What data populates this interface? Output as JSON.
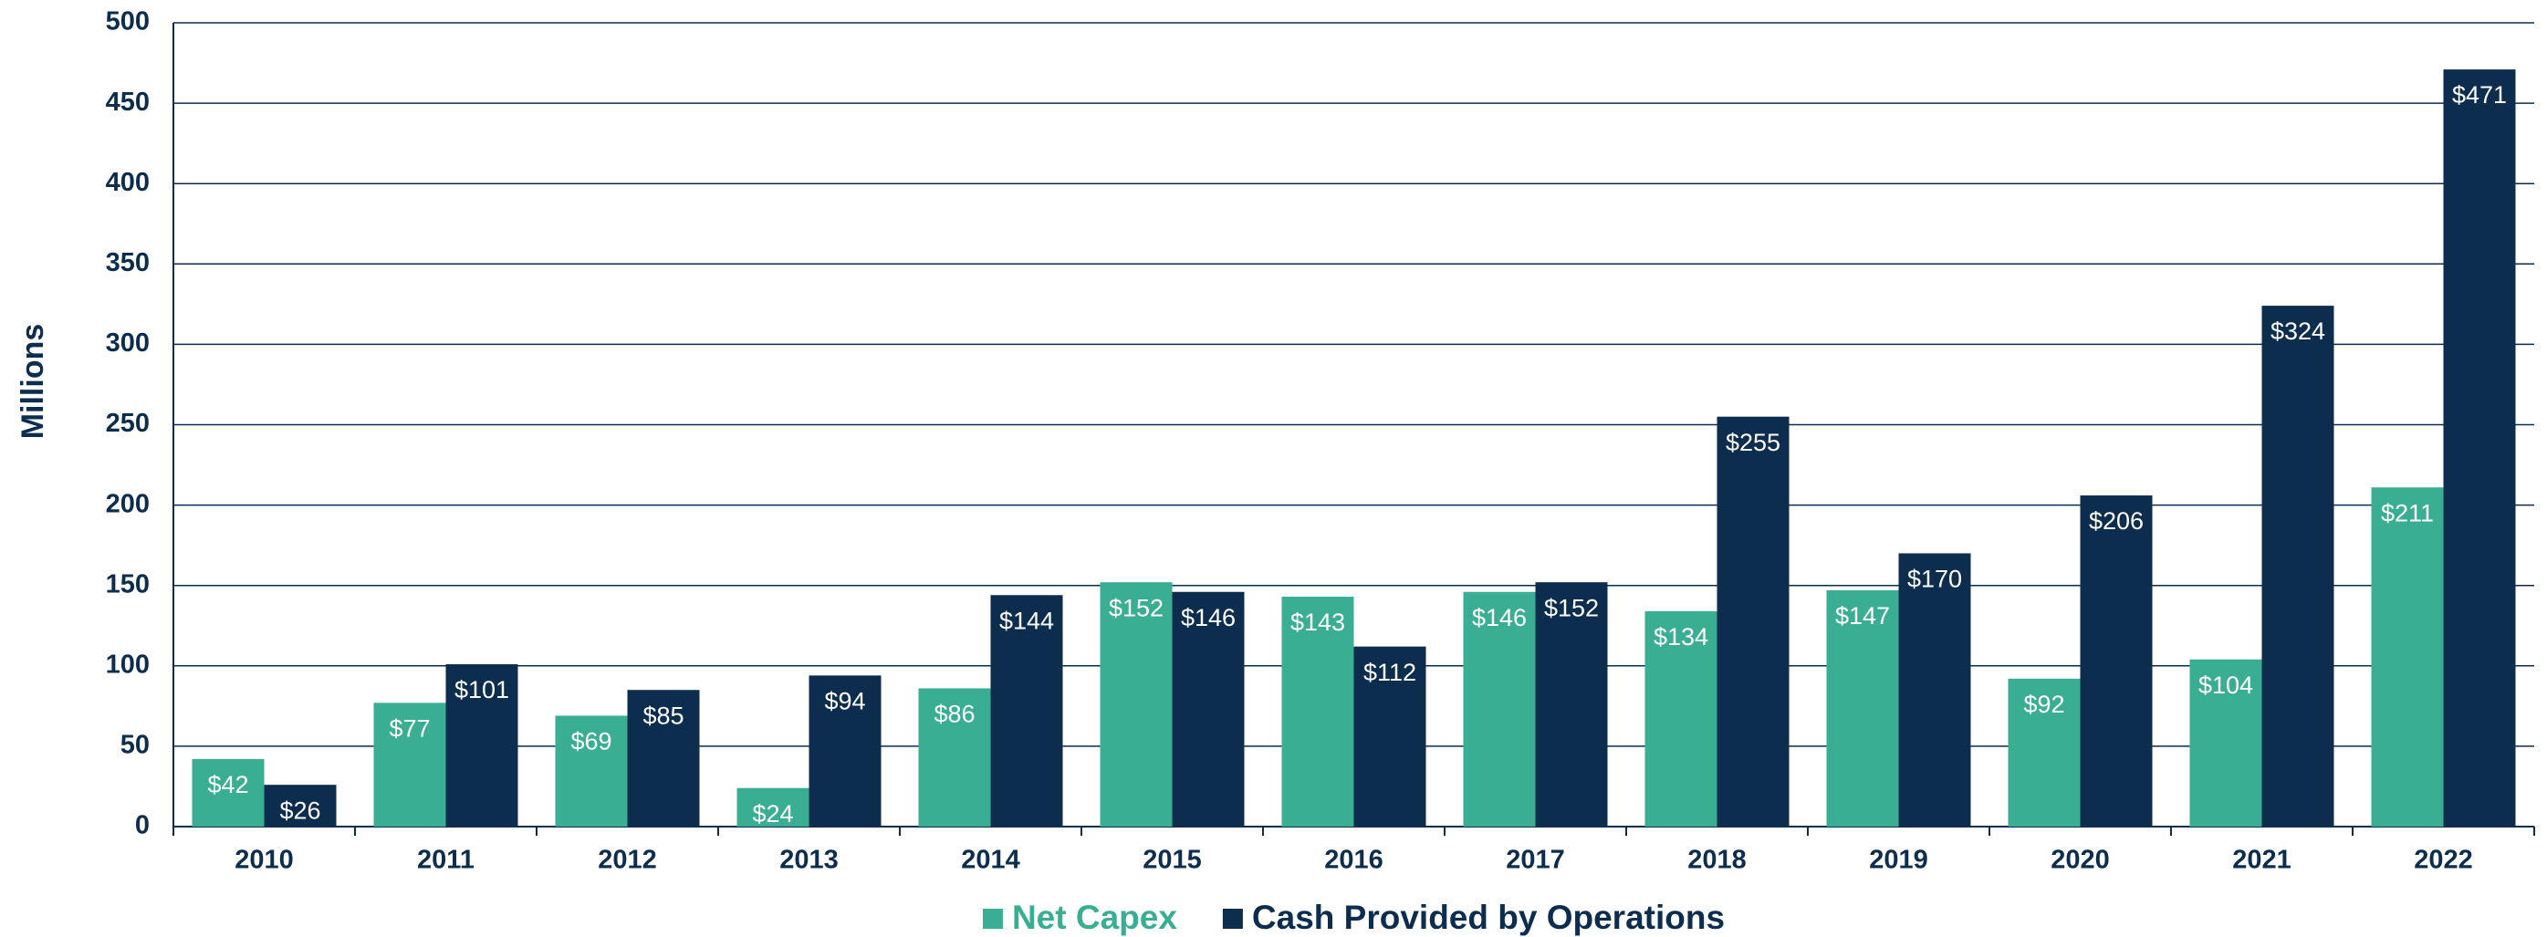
{
  "chart_data": {
    "type": "bar",
    "y_axis_label": "Millions",
    "categories": [
      "2010",
      "2011",
      "2012",
      "2013",
      "2014",
      "2015",
      "2016",
      "2017",
      "2018",
      "2019",
      "2020",
      "2021",
      "2022"
    ],
    "series": [
      {
        "name": "Net Capex",
        "color": "#3aae93",
        "values": [
          42,
          77,
          69,
          24,
          86,
          152,
          143,
          146,
          134,
          147,
          92,
          104,
          211
        ],
        "value_labels": [
          "$42",
          "$77",
          "$69",
          "$24",
          "$86",
          "$152",
          "$143",
          "$146",
          "$134",
          "$147",
          "$92",
          "$104",
          "$211"
        ]
      },
      {
        "name": "Cash Provided by Operations",
        "color": "#0d2d4f",
        "values": [
          26,
          101,
          85,
          94,
          144,
          146,
          112,
          152,
          255,
          170,
          206,
          324,
          471
        ],
        "value_labels": [
          "$26",
          "$101",
          "$85",
          "$94",
          "$144",
          "$146",
          "$112",
          "$152",
          "$255",
          "$170",
          "$206",
          "$324",
          "$471"
        ]
      }
    ],
    "ylim": [
      0,
      500
    ],
    "yticks": [
      0,
      50,
      100,
      150,
      200,
      250,
      300,
      350,
      400,
      450,
      500
    ],
    "grid": true,
    "legend": "bottom"
  }
}
